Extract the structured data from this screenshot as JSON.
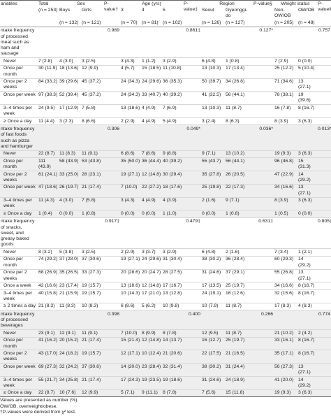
{
  "header": {
    "variables": "ariables",
    "total": {
      "label": "Total",
      "n": "(n = 253)"
    },
    "groups": [
      {
        "label": "Sex",
        "subgroups": [
          {
            "label": "Boys",
            "n": "(n = 132)"
          },
          {
            "label": "Girls",
            "n": "(n = 121)"
          }
        ],
        "pvalue": "P-value†"
      },
      {
        "label": "Age (yrs)",
        "subgroups": [
          {
            "label": "3",
            "n": "(n = 70)"
          },
          {
            "label": "4",
            "n": "(n = 81)"
          },
          {
            "label": "5",
            "n": "(n = 102)"
          }
        ],
        "pvalue": "P-value‡"
      },
      {
        "label": "Region",
        "subgroups": [
          {
            "label": "Seoul",
            "n": "(n = 126)"
          },
          {
            "label": "Gyeonggi-do",
            "n": "(n = 127)"
          }
        ],
        "pvalue": "P-value§"
      },
      {
        "label": "Weight status",
        "subgroups": [
          {
            "label": "Non-OW/OB",
            "n": "(n = 205)"
          },
          {
            "label": "OW/OB",
            "n": "(n = 48)"
          }
        ],
        "pvalue": "P-value‖"
      }
    ]
  },
  "sections": [
    {
      "title": "ntake frequency of processed meat such as ham and sausage",
      "pvalues": [
        "0.989",
        "0.861‡",
        "0.127*",
        "0.757"
      ],
      "rows": [
        {
          "label": "Never",
          "cells": [
            "7 (2.8)",
            "4 (3.0)",
            "3 (2.5)",
            "3 (4.3)",
            "1 (1.2)",
            "3 (2.9)",
            "6 (4.8)",
            "1 (0.8)",
            "7 (2.9)",
            "0 (0.0)"
          ]
        },
        {
          "label": "Once per month",
          "cells": [
            "30 (11.9)",
            "18 (13.6)",
            "12 (9.9)",
            "4 (5.7)",
            "15 (18.5)",
            "11 (10.8)",
            "13 (10.3)",
            "17 (13.4)",
            "25 (12.2)",
            "5 (10.4)"
          ]
        },
        {
          "label": "Once per 2 weeks",
          "cells": [
            "84 (33.2)",
            "39 (29.6)",
            "45 (37.2)",
            "24 (34.3)",
            "24 (29.6)",
            "36 (35.3)",
            "50 (39.7)",
            "34 (26.8)",
            "71 (34.6)",
            "13 (27.1)"
          ]
        },
        {
          "label": "Once per week",
          "cells": [
            "97 (38.3)",
            "52 (39.4)",
            "45 (37.2)",
            "24 (34.3)",
            "33 (40.7)",
            "40 (39.2)",
            "41 (32.5)",
            "56 (44.1)",
            "78 (38.1)",
            "19 (39.6)"
          ]
        },
        {
          "label": "3–4 times per week",
          "cells": [
            "24 (9.5)",
            "17 (12.9)",
            "7 (5.8)",
            "13 (18.6)",
            "4 (4.9)",
            "7 (6.9)",
            "13 (10.3)",
            "11 (8.7)",
            "16 (7.8)",
            "8 (16.7)"
          ]
        },
        {
          "label": "≥ Once a day",
          "cells": [
            "11 (4.4)",
            "3 (2.3)",
            "8 (6.6)",
            "2 (2.9)",
            "4 (4.9)",
            "5 (4.9)",
            "3 (2.4)",
            "8 (6.3)",
            "8 (3.9)",
            "3 (6.3)"
          ]
        }
      ]
    },
    {
      "title": "ntake frequency of fast foods such as pizza and hamburger",
      "pvalues": [
        "0.306",
        "0.049*",
        "0.036*",
        "0.013*‖"
      ],
      "rows": [
        {
          "label": "Never",
          "cells": [
            "22 (8.7)",
            "11 (8.3)",
            "11 (9.1)",
            "6 (8.6)",
            "7 (8.6)",
            "9 (8.8)",
            "9 (7.1)",
            "13 (10.2)",
            "19 (9.3)",
            "3 (6.3)"
          ]
        },
        {
          "label": "Once per month",
          "cells": [
            "111 (43.9)",
            "58 (43.9)",
            "53 (43.8)",
            "35 (50.0)",
            "36 (44.4)",
            "40 (39.2)",
            "55 (43.7)",
            "56 (44.1)",
            "96 (46.8)",
            "15 (31.3)"
          ]
        },
        {
          "label": "Once per 2 weeks",
          "cells": [
            "61 (24.1)",
            "33 (25.0)",
            "28 (23.1)",
            "19 (27.1)",
            "12 (14.8)",
            "30 (29.4)",
            "35 (27.8)",
            "26 (20.5)",
            "47 (22.9)",
            "14 (29.2)"
          ]
        },
        {
          "label": "Once per week",
          "cells": [
            "47 (18.6)",
            "26 (19.7)",
            "21 (17.4)",
            "7 (10.0)",
            "22 (27.2)",
            "18 (17.6)",
            "25 (19.8)",
            "22 (17.3)",
            "34 (16.6)",
            "13 (27.1)"
          ]
        },
        {
          "label": "3–4 times per week",
          "cells": [
            "11 (4.3)",
            "4 (3.0)",
            "7 (5.8)",
            "3 (4.3)",
            "4 (4.9)",
            "4 (3.9)",
            "2 (1.6)",
            "9 (7.1)",
            "8 (3.9)",
            "3 (6.3)"
          ]
        },
        {
          "label": "≥ Once a day",
          "cells": [
            "1 (0.4)",
            "0 (0.0)",
            "1 (0.8)",
            "0 (0.0)",
            "0 (0.0)",
            "1 (1.0)",
            "0 (0.0)",
            "1 (0.8)",
            "1 (0.5)",
            "0 (0.0)"
          ]
        }
      ]
    },
    {
      "title": "ntake frequency of snacks, sweet, and greasy baked goods",
      "pvalues": [
        "0.917‡",
        "0.479‡",
        "0.631‡",
        "0.805‡"
      ],
      "rows": [
        {
          "label": "Never",
          "cells": [
            "8 (3.2)",
            "5 (3.8)",
            "3 (2.5)",
            "2 (2.9)",
            "3 (3.7)",
            "3 (2.9)",
            "6 (4.8)",
            "2 (1.6)",
            "7 (3.4)",
            "1 (2.1)"
          ]
        },
        {
          "label": "Once per month",
          "cells": [
            "74 (29.2)",
            "37 (28.0)",
            "37 (30.6)",
            "19 (27.1)",
            "24 (29.6)",
            "31 (30.4)",
            "38 (30.2)",
            "36 (28.4)",
            "60 (29.3)",
            "14 (29.2)"
          ]
        },
        {
          "label": "Once per 2 weeks",
          "cells": [
            "68 (26.9)",
            "35 (26.5)",
            "33 (27.3)",
            "20 (28.6)",
            "20 (24.7)",
            "28 (27.5)",
            "31 (24.6)",
            "37 (29.1)",
            "55 (26.8)",
            "13 (27.1)"
          ]
        },
        {
          "label": "Once a week",
          "cells": [
            "42 (16.6)",
            "23 (17.4)",
            "19 (15.7)",
            "13 (18.6)",
            "12 (14.8)",
            "17 (16.7)",
            "17 (13.5)",
            "25 (19.7)",
            "34 (16.6)",
            "8 (16.7)"
          ]
        },
        {
          "label": "3–4 times per week",
          "cells": [
            "40 (15.8)",
            "21 (15.9)",
            "19 (15.7)",
            "10 (14.3)",
            "17 (21.0)",
            "13 (12.8)",
            "24 (19.1)",
            "16 (12.6)",
            "32 (15.6)",
            "8 (16.7)"
          ]
        },
        {
          "label": "≥ 2 times a day",
          "cells": [
            "21 (8.3)",
            "11 (8.3)",
            "10 (8.3)",
            "6 (8.6)",
            "5 (6.2)",
            "10 (9.8)",
            "10 (7.9)",
            "11 (8.7)",
            "17 (8.3)",
            "4 (8.3)"
          ]
        }
      ]
    },
    {
      "title": "ntake frequency of processed beverages",
      "pvalues": [
        "0.398",
        "0.400",
        "0.266",
        "0.774"
      ],
      "rows": [
        {
          "label": "Never",
          "cells": [
            "23 (9.1)",
            "12 (9.1)",
            "11 (9.1)",
            "7 (10.0)",
            "8 (9.9)",
            "8 (7.8)",
            "12 (9.5)",
            "11 (8.7)",
            "21 (10.2)",
            "2 (4.2)"
          ]
        },
        {
          "label": "Once per month",
          "cells": [
            "41 (16.2)",
            "20 (15.2)",
            "21 (17.4)",
            "15 (21.4)",
            "12 (14.8)",
            "14 (13.7)",
            "16 (12.7)",
            "25 (19.7)",
            "33 (16.1)",
            "8 (16.7)"
          ]
        },
        {
          "label": "Once per 2 weeks",
          "cells": [
            "43 (17.0)",
            "24 (18.2)",
            "19 (15.7)",
            "12 (17.1)",
            "10 (12.4)",
            "21 (20.6)",
            "22 (17.5)",
            "21 (16.5)",
            "35 (17.1)",
            "8 (16.7)"
          ]
        },
        {
          "label": "Once per week",
          "cells": [
            "69 (27.3)",
            "32 (24.2)",
            "37 (30.6)",
            "14 (20.0)",
            "23 (28.4)",
            "32 (31.4)",
            "38 (30.2)",
            "31 (24.4)",
            "56 (27.3)",
            "13 (27.1)"
          ]
        },
        {
          "label": "3–4 times per week",
          "cells": [
            "55 (21.7)",
            "34 (25.8)",
            "21 (17.4)",
            "17 (24.3)",
            "19 (23.5)",
            "19 (18.6)",
            "31 (24.6)",
            "24 (18.9)",
            "41 (20.0)",
            "14 (29.2)"
          ]
        },
        {
          "label": "≥ Once a day",
          "cells": [
            "22 (8.7)",
            "10 (7.6)",
            "12 (9.9)",
            "5 (7.1)",
            "9 (11.1)",
            "8 (7.8)",
            "7 (5.6)",
            "15 (11.8)",
            "19 (9.3)",
            "3 (6.3)"
          ]
        }
      ]
    }
  ],
  "footnotes": [
    "Values are presented as number (%).",
    "OW/OB, overweight/obese.",
    "†P-values were derived from χ² test."
  ]
}
